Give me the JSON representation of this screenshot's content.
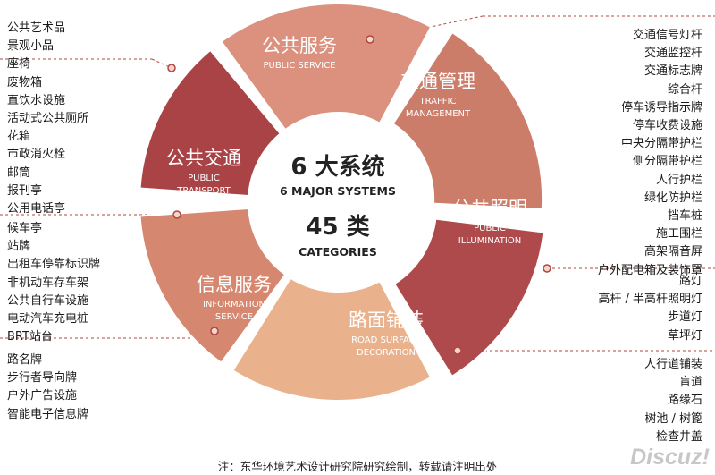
{
  "center": {
    "line1": "6 大系统",
    "line2": "6 MAJOR SYSTEMS",
    "line3": "45 类",
    "line4": "CATEGORIES"
  },
  "segments": [
    {
      "id": "public-service",
      "zh": "公共服务",
      "en1": "PUBLIC   SERVICE",
      "en2": "",
      "color": "#dc917e"
    },
    {
      "id": "traffic-management",
      "zh": "交通管理",
      "en1": "TRAFFIC",
      "en2": "MANAGEMENT",
      "color": "#cc7d6a"
    },
    {
      "id": "public-illumination",
      "zh": "公共照明",
      "en1": "PUBLIC",
      "en2": "ILLUMINATION",
      "color": "#ae4a4c"
    },
    {
      "id": "road-surface-decoration",
      "zh": "路面铺装",
      "en1": "ROAD SURFACE",
      "en2": "DECORATION",
      "color": "#e9b28c"
    },
    {
      "id": "information-service",
      "zh": "信息服务",
      "en1": "INFORMATION",
      "en2": "SERVICE",
      "color": "#d6876f"
    },
    {
      "id": "public-transport",
      "zh": "公共交通",
      "en1": "PUBLIC",
      "en2": "TRANSPORT",
      "color": "#a94346"
    }
  ],
  "lists": {
    "public_service": [
      "公共艺术品",
      "景观小品",
      "座椅",
      "废物箱",
      "直饮水设施",
      "活动式公共厕所",
      "花箱",
      "市政消火栓",
      "邮筒",
      "报刊亭",
      "公用电话亭"
    ],
    "public_transport": [
      "候车亭",
      "站牌",
      "出租车停靠标识牌",
      "非机动车存车架",
      "公共自行车设施",
      "电动汽车充电桩",
      "BRT站台"
    ],
    "information_service": [
      "路名牌",
      "步行者导向牌",
      "户外广告设施",
      "智能电子信息牌"
    ],
    "traffic_management": [
      "交通信号灯杆",
      "交通监控杆",
      "交通标志牌",
      "综合杆",
      "停车诱导指示牌",
      "停车收费设施",
      "中央分隔带护栏",
      "侧分隔带护栏",
      "人行护栏",
      "绿化防护栏",
      "挡车桩",
      "施工围栏",
      "高架隔音屏",
      "户外配电箱及装饰罩"
    ],
    "public_illumination": [
      "路灯",
      "高杆 / 半高杆照明灯",
      "步道灯",
      "草坪灯"
    ],
    "road_surface": [
      "人行道铺装",
      "盲道",
      "路缘石",
      "树池 / 树篦",
      "检查井盖"
    ]
  },
  "footer": "注：东华环境艺术设计研究院研究绘制，转载请注明出处",
  "watermark": "Discuz!"
}
